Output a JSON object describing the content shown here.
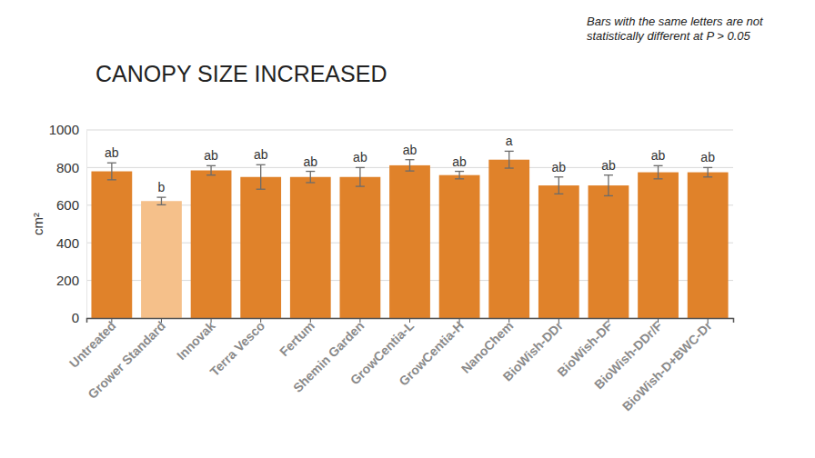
{
  "chart_data": {
    "type": "bar",
    "title": "CANOPY SIZE INCREASED",
    "subtitle": "Bars with the same letters are not statistically different at P > 0.05",
    "y_label": "cm²",
    "categories": [
      "Untreated",
      "Grower Standard",
      "Innovak",
      "Terra Vesco",
      "Fertum",
      "Shemin Garden",
      "GrowCentia-L",
      "GrowCentia-H",
      "NanoChem",
      "BioWish-DDr",
      "BioWish-DF",
      "BioWish-DDr/F",
      "BioWish-D+BWC-Dr"
    ],
    "values": [
      780,
      622,
      785,
      750,
      750,
      750,
      812,
      760,
      842,
      705,
      705,
      775,
      775
    ],
    "errors": [
      45,
      20,
      25,
      65,
      30,
      50,
      30,
      20,
      45,
      45,
      55,
      35,
      25
    ],
    "annotations": [
      "ab",
      "b",
      "ab",
      "ab",
      "ab",
      "ab",
      "ab",
      "ab",
      "a",
      "ab",
      "ab",
      "ab",
      "ab"
    ],
    "colors": [
      "#e0822a",
      "#f5c08a",
      "#e0822a",
      "#e0822a",
      "#e0822a",
      "#e0822a",
      "#e0822a",
      "#e0822a",
      "#e0822a",
      "#e0822a",
      "#e0822a",
      "#e0822a",
      "#e0822a"
    ],
    "ylim": [
      0,
      1000
    ],
    "yticks": [
      0,
      200,
      400,
      600,
      800,
      1000
    ],
    "grid": true
  }
}
